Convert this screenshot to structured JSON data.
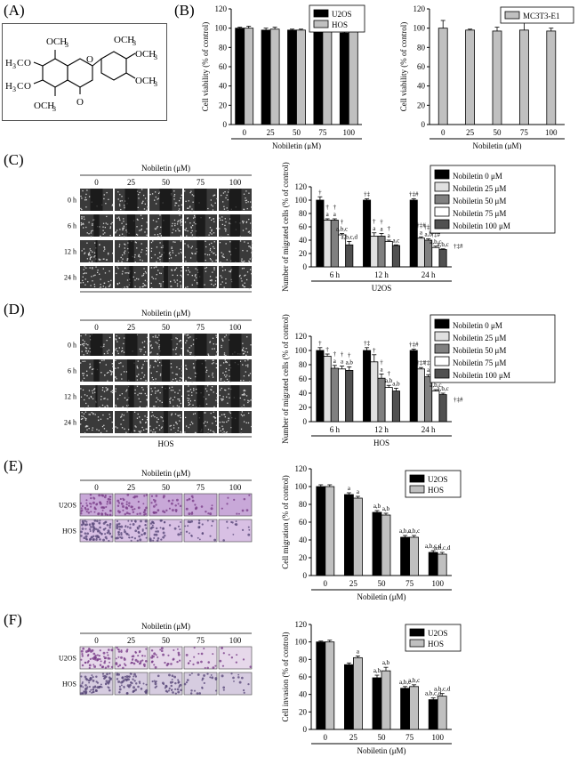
{
  "panel_labels": [
    "(A)",
    "(B)",
    "(C)",
    "(D)",
    "(E)",
    "(F)"
  ],
  "structure": {
    "ome": [
      "OCH",
      "OCH",
      "OCH",
      "OCH",
      "OCH",
      "OCH"
    ],
    "sub3": "3",
    "left_ome": [
      "H",
      "C",
      "O"
    ],
    "h3": "3",
    "carbonyl": "O",
    "ring_o": "O"
  },
  "microscopy": {
    "header": "Nobiletin (μM)",
    "conc": [
      "0",
      "25",
      "50",
      "75",
      "100"
    ],
    "wound_times": [
      "0 h",
      "6 h",
      "12 h",
      "24 h"
    ],
    "cells": [
      "U2OS",
      "HOS"
    ],
    "transwell_rows": [
      "U2OS",
      "HOS"
    ]
  },
  "chart_data": [
    {
      "id": "b1",
      "type": "bar",
      "categories": [
        "0",
        "25",
        "50",
        "75",
        "100"
      ],
      "series": [
        {
          "name": "U2OS",
          "values": [
            100,
            98,
            98,
            97,
            95
          ],
          "err": [
            1,
            2,
            1,
            1,
            1
          ],
          "color": "#000000"
        },
        {
          "name": "HOS",
          "values": [
            100,
            99,
            98,
            100,
            100
          ],
          "err": [
            2,
            2,
            1,
            1,
            1
          ],
          "color": "#c0c0c0"
        }
      ],
      "xlabel": "Nobiletin (μM)",
      "ylabel": "Cell viability (% of control)",
      "ylim": [
        0,
        120
      ],
      "yticks": [
        0,
        20,
        40,
        60,
        80,
        100,
        120
      ],
      "legend": "top-right"
    },
    {
      "id": "b2",
      "type": "bar",
      "categories": [
        "0",
        "25",
        "50",
        "75",
        "100"
      ],
      "series": [
        {
          "name": "MC3T3-E1",
          "values": [
            100,
            98,
            97,
            98,
            97
          ],
          "err": [
            8,
            1,
            4,
            10,
            3
          ],
          "color": "#c0c0c0"
        }
      ],
      "xlabel": "Nobiletin (μM)",
      "ylabel": "Cell viability (% of control)",
      "ylim": [
        0,
        120
      ],
      "yticks": [
        0,
        20,
        40,
        60,
        80,
        100,
        120
      ],
      "legend": "top-right"
    },
    {
      "id": "c",
      "type": "bar",
      "categories": [
        "6 h",
        "12 h",
        "24 h"
      ],
      "series": [
        {
          "name": "Nobiletin 0 μM",
          "values": [
            100,
            100,
            100
          ],
          "err": [
            5,
            2,
            2
          ],
          "color": "#000000",
          "labels": [
            "†",
            "†‡",
            "†‡#"
          ]
        },
        {
          "name": "Nobiletin 25 μM",
          "values": [
            70,
            46,
            43
          ],
          "err": [
            2,
            5,
            2
          ],
          "color": "#e0e0e0",
          "labels": [
            "†\na",
            "†\na",
            "†‡#\na"
          ]
        },
        {
          "name": "Nobiletin 50 μM",
          "values": [
            70,
            46,
            40
          ],
          "err": [
            2,
            4,
            2
          ],
          "color": "#808080",
          "labels": [
            "†\na",
            "†\na",
            "†‡#\na,b"
          ]
        },
        {
          "name": "Nobiletin 75 μM",
          "values": [
            48,
            38,
            29
          ],
          "err": [
            2,
            2,
            2
          ],
          "color": "#ffffff",
          "labels": [
            "†\na,b,c",
            "†\na",
            "†‡#\na,b,c"
          ]
        },
        {
          "name": "Nobiletin 100 μM",
          "values": [
            33,
            32,
            26
          ],
          "err": [
            5,
            1,
            1
          ],
          "color": "#505050",
          "labels": [
            "a,b,c,d",
            "a,c",
            "a,b,c"
          ]
        }
      ],
      "side_note": "†‡#",
      "xlabel": "U2OS",
      "ylabel": "Number of migrated cells (% of control)",
      "ylim": [
        0,
        120
      ],
      "yticks": [
        0,
        20,
        40,
        60,
        80,
        100,
        120
      ],
      "legend": "top-right"
    },
    {
      "id": "d",
      "type": "bar",
      "categories": [
        "6 h",
        "12 h",
        "24 h"
      ],
      "series": [
        {
          "name": "Nobiletin 0 μM",
          "values": [
            100,
            100,
            100
          ],
          "err": [
            4,
            4,
            2
          ],
          "color": "#000000",
          "labels": [
            "†",
            "†‡",
            "†‡#"
          ]
        },
        {
          "name": "Nobiletin 25 μM",
          "values": [
            92,
            84,
            74
          ],
          "err": [
            3,
            10,
            2
          ],
          "color": "#e0e0e0",
          "labels": [
            "†",
            "†",
            "†‡#"
          ]
        },
        {
          "name": "Nobiletin 50 μM",
          "values": [
            75,
            61,
            63
          ],
          "err": [
            4,
            6,
            3
          ],
          "color": "#808080",
          "labels": [
            "†\na",
            "†\na",
            "†‡#\na"
          ]
        },
        {
          "name": "Nobiletin 75 μM",
          "values": [
            74,
            48,
            43
          ],
          "err": [
            4,
            3,
            2
          ],
          "color": "#ffffff",
          "labels": [
            "†\na",
            "†\na,b",
            "†‡#\na,b,c"
          ]
        },
        {
          "name": "Nobiletin 100 μM",
          "values": [
            72,
            43,
            38
          ],
          "err": [
            5,
            4,
            2
          ],
          "color": "#505050",
          "labels": [
            "†\na,b",
            "a,b",
            "a,b,c"
          ]
        }
      ],
      "side_note": "†‡#",
      "xlabel": "HOS",
      "ylabel": "Number of migrated cells (% of control)",
      "ylim": [
        0,
        120
      ],
      "yticks": [
        0,
        20,
        40,
        60,
        80,
        100,
        120
      ],
      "legend": "top-right"
    },
    {
      "id": "e",
      "type": "bar",
      "categories": [
        "0",
        "25",
        "50",
        "75",
        "100"
      ],
      "series": [
        {
          "name": "U2OS",
          "values": [
            100,
            91,
            71,
            43,
            26
          ],
          "err": [
            2,
            2,
            2,
            2,
            2
          ],
          "color": "#000000",
          "labels": [
            "",
            "a",
            "a,b",
            "a,b,c",
            "a,b,c,d"
          ]
        },
        {
          "name": "HOS",
          "values": [
            100,
            87,
            68,
            43,
            24
          ],
          "err": [
            2,
            2,
            2,
            2,
            2
          ],
          "color": "#c0c0c0",
          "labels": [
            "",
            "a",
            "a,b",
            "a,b,c",
            "a,b,c,d"
          ]
        }
      ],
      "xlabel": "Nobiletin (μM)",
      "ylabel": "Cell migration (% of control)",
      "ylim": [
        0,
        120
      ],
      "yticks": [
        0,
        20,
        40,
        60,
        80,
        100,
        120
      ],
      "legend": "top-right"
    },
    {
      "id": "f",
      "type": "bar",
      "categories": [
        "0",
        "25",
        "50",
        "75",
        "100"
      ],
      "series": [
        {
          "name": "U2OS",
          "values": [
            100,
            74,
            59,
            47,
            34
          ],
          "err": [
            1,
            2,
            3,
            2,
            2
          ],
          "color": "#000000",
          "labels": [
            "",
            "",
            "a,b",
            "a,b,c",
            "a,b,c,d"
          ]
        },
        {
          "name": "HOS",
          "values": [
            100,
            82,
            67,
            49,
            38
          ],
          "err": [
            2,
            2,
            4,
            2,
            3
          ],
          "color": "#c0c0c0",
          "labels": [
            "",
            "a",
            "a,b",
            "a,b,c",
            "a,b,c,d"
          ]
        }
      ],
      "xlabel": "Nobiletin (μM)",
      "ylabel": "Cell invasion (% of control)",
      "ylim": [
        0,
        120
      ],
      "yticks": [
        0,
        20,
        40,
        60,
        80,
        100,
        120
      ],
      "legend": "top-right"
    }
  ]
}
